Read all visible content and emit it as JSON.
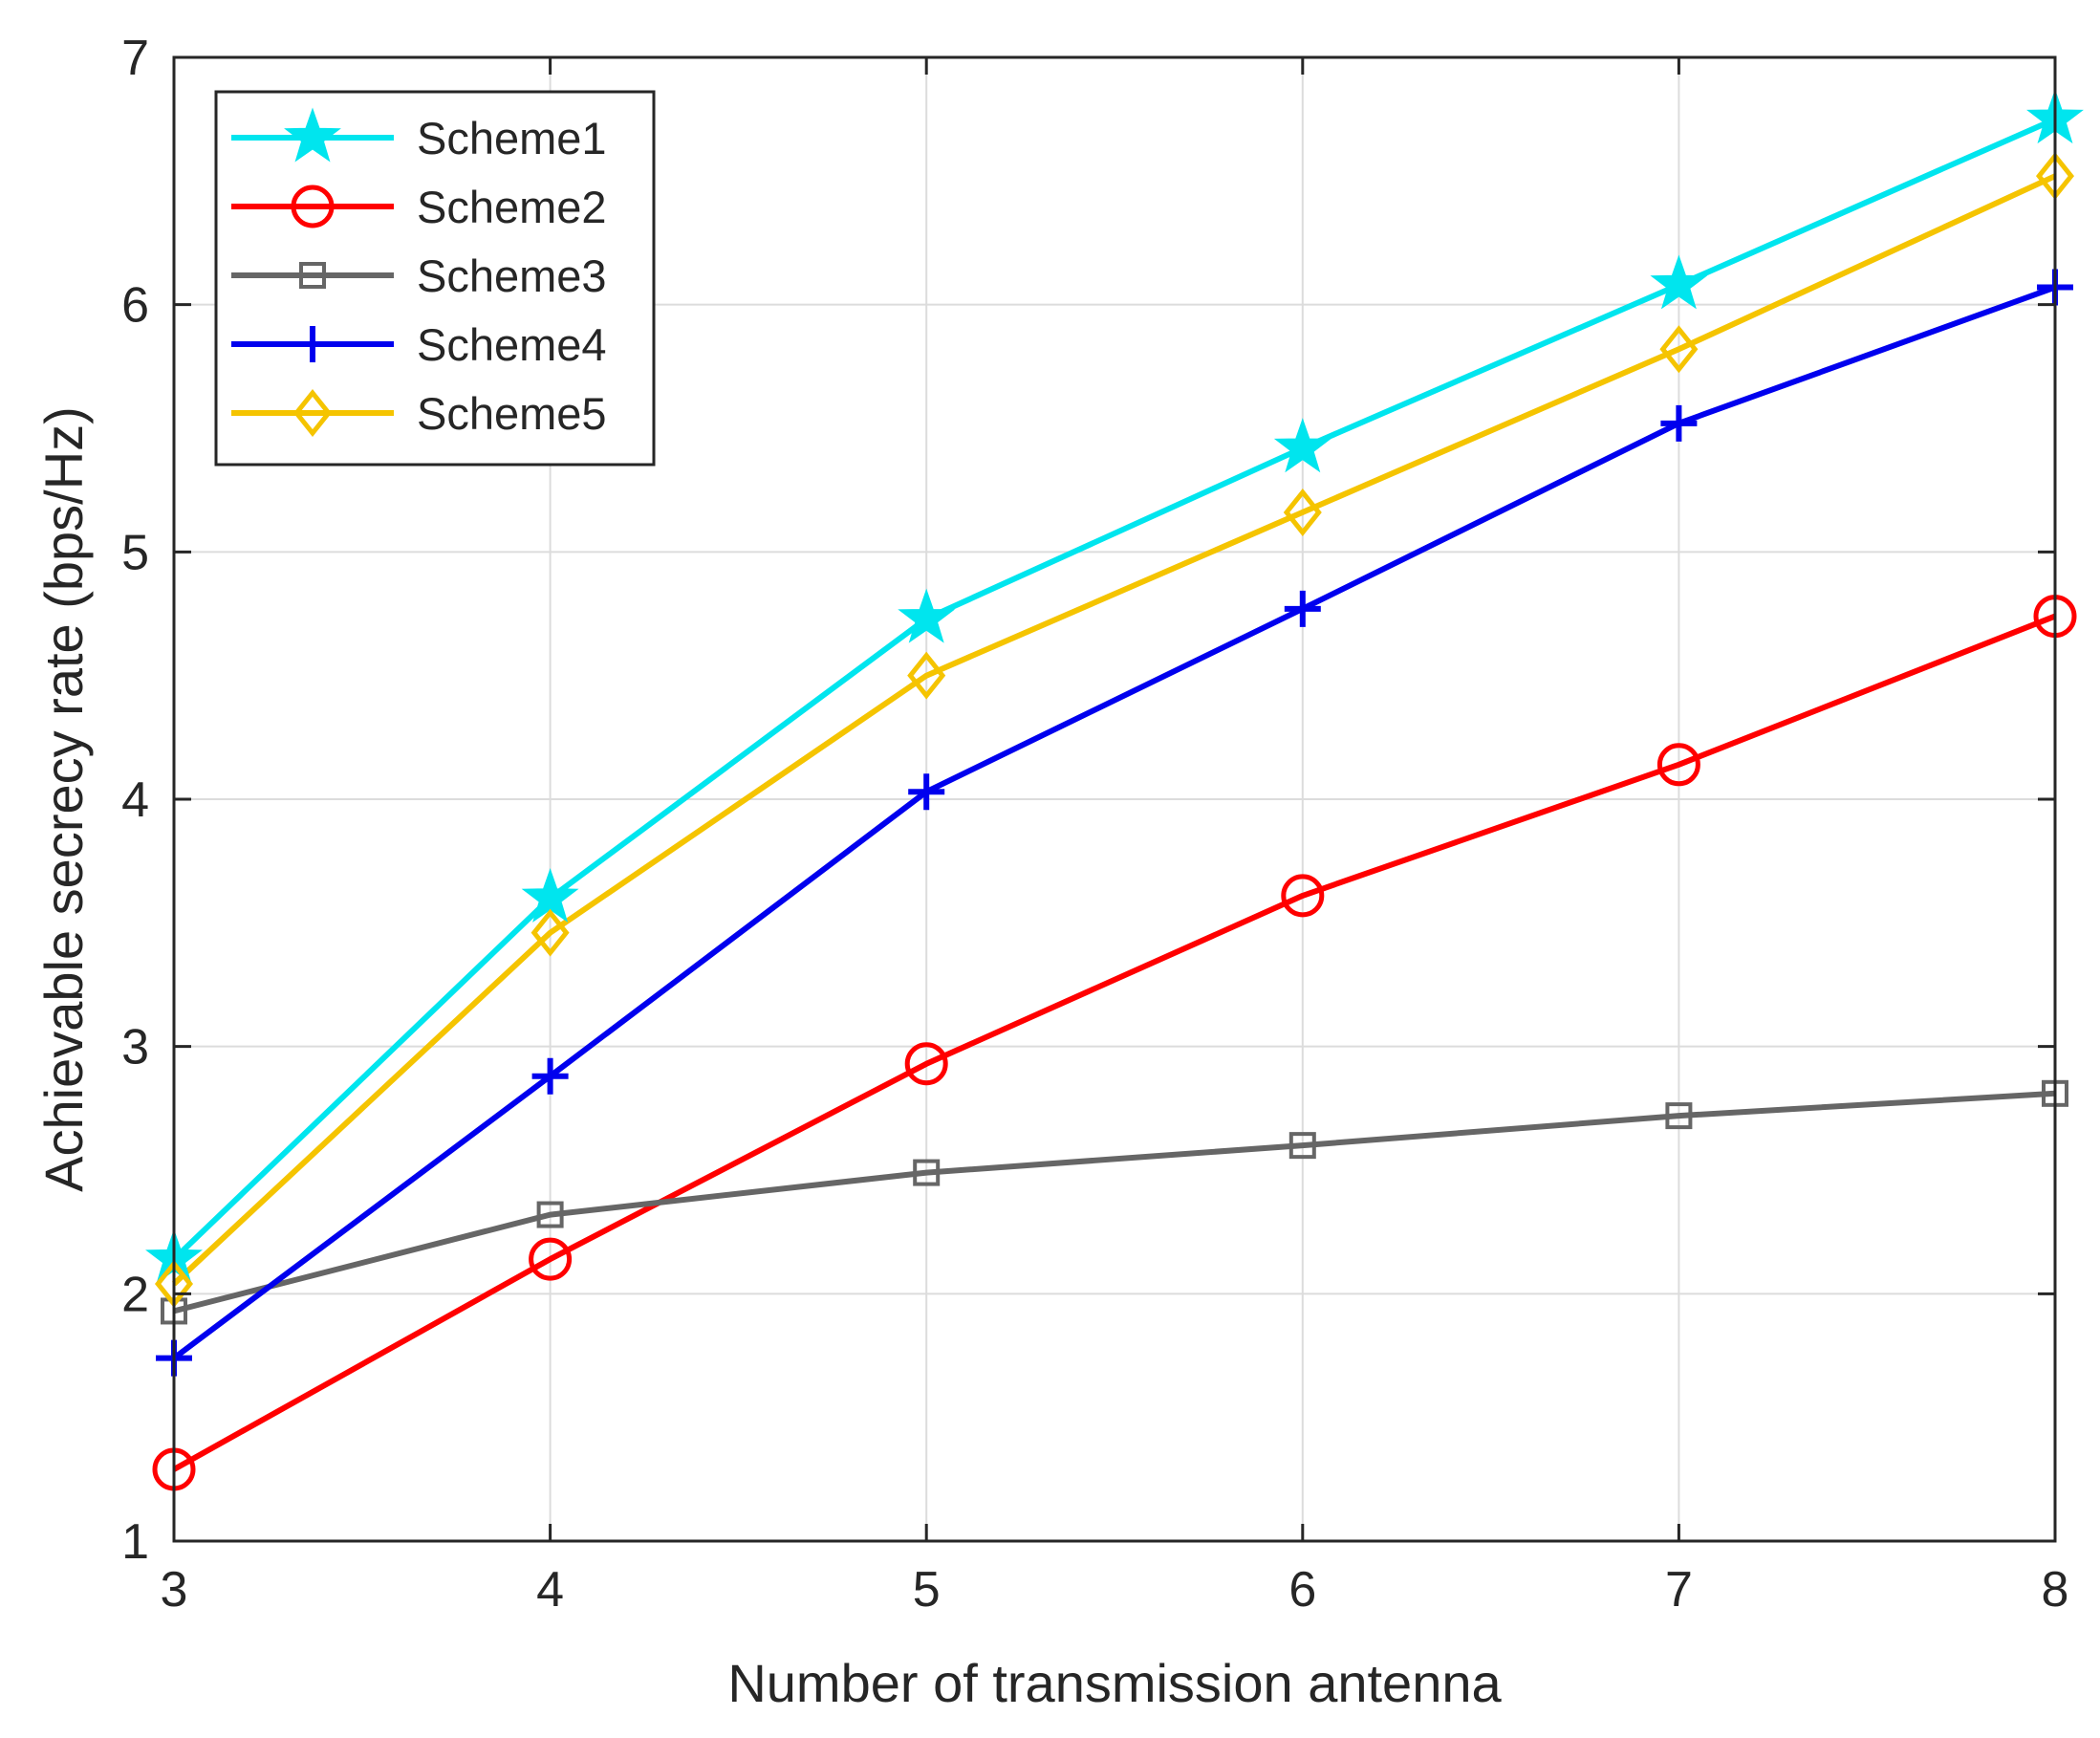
{
  "chart_data": {
    "type": "line",
    "xlabel": "Number of transmission antenna",
    "ylabel": "Achievable secrecy rate (bps/Hz)",
    "xlim": [
      3,
      8
    ],
    "ylim": [
      1,
      7
    ],
    "xticks": [
      3,
      4,
      5,
      6,
      7,
      8
    ],
    "yticks": [
      1,
      2,
      3,
      4,
      5,
      6,
      7
    ],
    "grid": true,
    "legend_position": "top-left",
    "x": [
      3,
      4,
      5,
      6,
      7,
      8
    ],
    "series": [
      {
        "name": "Scheme1",
        "color": "#00e5ee",
        "marker": "star",
        "values": [
          2.14,
          3.6,
          4.73,
          5.42,
          6.08,
          6.75
        ]
      },
      {
        "name": "Scheme2",
        "color": "#ff0000",
        "marker": "circle",
        "values": [
          1.29,
          2.14,
          2.93,
          3.61,
          4.14,
          4.74
        ]
      },
      {
        "name": "Scheme3",
        "color": "#666666",
        "marker": "square",
        "values": [
          1.93,
          2.32,
          2.49,
          2.6,
          2.72,
          2.81
        ]
      },
      {
        "name": "Scheme4",
        "color": "#0000ee",
        "marker": "plus",
        "values": [
          1.74,
          2.88,
          4.03,
          4.77,
          5.52,
          6.07
        ]
      },
      {
        "name": "Scheme5",
        "color": "#f5c400",
        "marker": "diamond",
        "values": [
          2.04,
          3.46,
          4.5,
          5.16,
          5.82,
          6.52
        ]
      }
    ]
  }
}
